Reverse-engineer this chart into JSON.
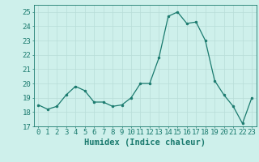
{
  "x": [
    0,
    1,
    2,
    3,
    4,
    5,
    6,
    7,
    8,
    9,
    10,
    11,
    12,
    13,
    14,
    15,
    16,
    17,
    18,
    19,
    20,
    21,
    22,
    23
  ],
  "y": [
    18.5,
    18.2,
    18.4,
    19.2,
    19.8,
    19.5,
    18.7,
    18.7,
    18.4,
    18.5,
    19.0,
    20.0,
    20.0,
    21.8,
    24.7,
    25.0,
    24.2,
    24.3,
    23.0,
    20.2,
    19.2,
    18.4,
    17.2,
    19.0
  ],
  "line_color": "#1a7a6e",
  "marker_color": "#1a7a6e",
  "bg_color": "#cef0eb",
  "grid_color": "#b8ddd8",
  "xlabel": "Humidex (Indice chaleur)",
  "ylim": [
    17,
    25.5
  ],
  "xlim": [
    -0.5,
    23.5
  ],
  "yticks": [
    17,
    18,
    19,
    20,
    21,
    22,
    23,
    24,
    25
  ],
  "xticks": [
    0,
    1,
    2,
    3,
    4,
    5,
    6,
    7,
    8,
    9,
    10,
    11,
    12,
    13,
    14,
    15,
    16,
    17,
    18,
    19,
    20,
    21,
    22,
    23
  ],
  "tick_fontsize": 6.5,
  "xlabel_fontsize": 7.5
}
